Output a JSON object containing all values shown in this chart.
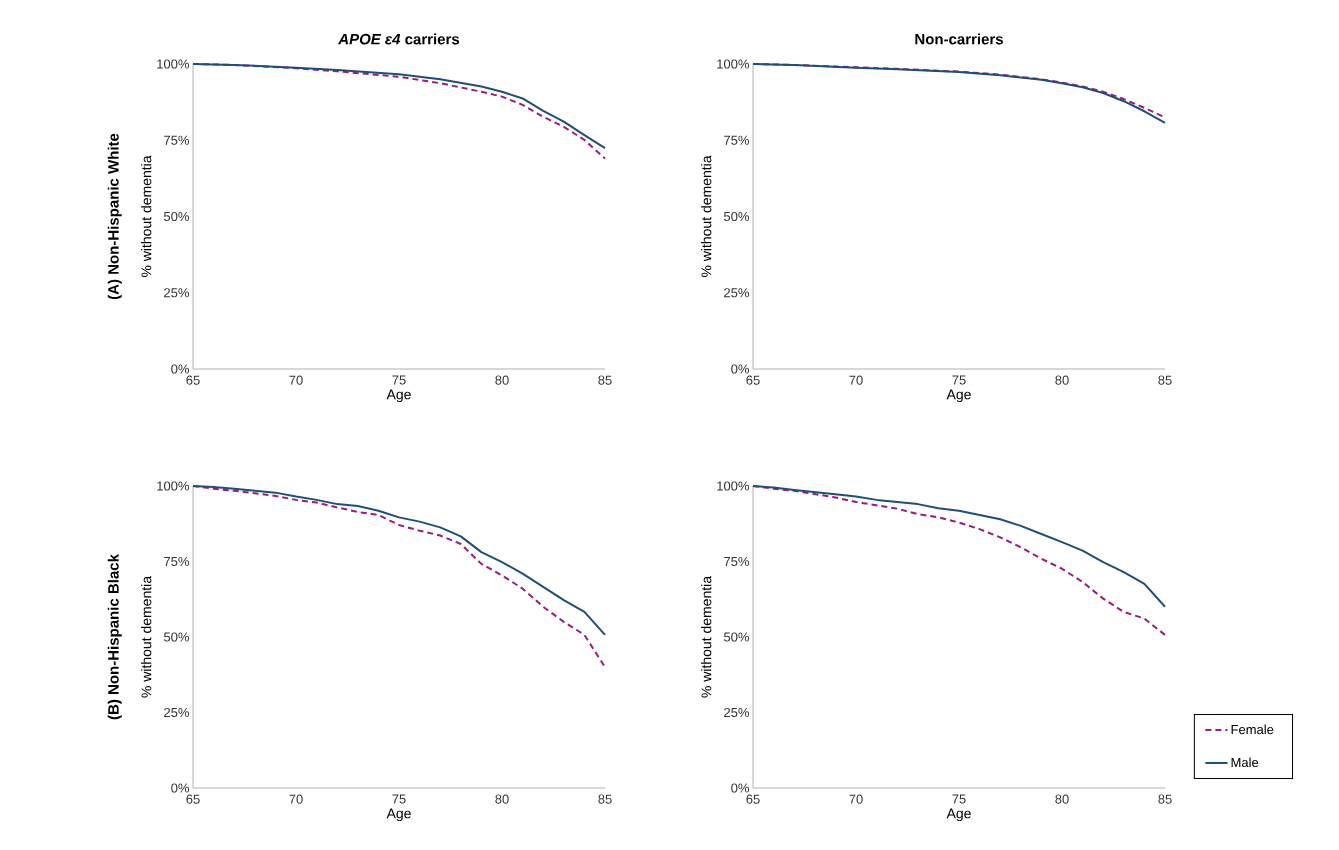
{
  "chart_data": [
    {
      "type": "line",
      "title": "*APOE ε4* carriers",
      "annotations": [
        "(A) Non-Hispanic White"
      ],
      "xlabel": "Age",
      "ylabel": "% without dementia",
      "x": [
        65,
        67,
        70,
        72,
        75,
        77,
        79,
        80,
        81,
        82,
        83,
        84,
        85
      ],
      "series": [
        {
          "color": "#9b1b80",
          "line_style": "dashed",
          "values": [
            100,
            99.7,
            98.6,
            97.6,
            95.8,
            93.7,
            90.9,
            89.3,
            86.6,
            82.7,
            79.4,
            75.1,
            69
          ]
        },
        {
          "color": "#1f4e79",
          "line_style": "solid",
          "values": [
            100,
            99.7,
            98.8,
            98,
            96.6,
            95,
            92.6,
            90.9,
            88.7,
            84.6,
            81.1,
            76.7,
            72.4
          ]
        }
      ],
      "xlim": [
        65,
        85
      ],
      "ylim": [
        0,
        100
      ],
      "xticks": [
        65,
        70,
        75,
        80,
        85
      ],
      "yticks": [
        {
          "value": 0,
          "label": "0%"
        },
        {
          "value": 25,
          "label": "25%"
        },
        {
          "value": 50,
          "label": "50%"
        },
        {
          "value": 75,
          "label": "75%"
        },
        {
          "value": 100,
          "label": "100%"
        }
      ],
      "grid": false
    },
    {
      "type": "line",
      "title": "Non-carriers",
      "xlabel": "Age",
      "ylabel": "% without dementia",
      "x": [
        65,
        67,
        70,
        72,
        75,
        77,
        79,
        80,
        81,
        82,
        83,
        84,
        85
      ],
      "series": [
        {
          "color": "#9b1b80",
          "line_style": "dashed",
          "values": [
            100,
            99.7,
            98.9,
            98.4,
            97.5,
            96.5,
            95,
            93.9,
            92.6,
            90.9,
            88.5,
            85.6,
            82.5
          ]
        },
        {
          "color": "#1f4e79",
          "line_style": "solid",
          "values": [
            100,
            99.7,
            98.8,
            98.3,
            97.4,
            96.3,
            94.8,
            93.7,
            92.4,
            90.5,
            87.8,
            84.5,
            80.7
          ]
        }
      ],
      "xlim": [
        65,
        85
      ],
      "ylim": [
        0,
        100
      ],
      "xticks": [
        65,
        70,
        75,
        80,
        85
      ],
      "yticks": [
        {
          "value": 0,
          "label": "0%"
        },
        {
          "value": 25,
          "label": "25%"
        },
        {
          "value": 50,
          "label": "50%"
        },
        {
          "value": 75,
          "label": "75%"
        },
        {
          "value": 100,
          "label": "100%"
        }
      ],
      "grid": false
    },
    {
      "type": "line",
      "annotations": [
        "(B) Non-Hispanic Black"
      ],
      "xlabel": "Age",
      "ylabel": "% without dementia",
      "x": [
        65,
        66,
        67,
        68,
        69,
        70,
        71,
        72,
        73,
        74,
        75,
        76,
        77,
        78,
        79,
        80,
        81,
        82,
        83,
        84,
        85
      ],
      "series": [
        {
          "color": "#9b1b80",
          "line_style": "dashed",
          "values": [
            100,
            99.1,
            98.4,
            97.6,
            96.7,
            95.4,
            94.5,
            92.9,
            91.4,
            90.4,
            87.1,
            85.2,
            83.6,
            80.8,
            74.2,
            70.4,
            66,
            60,
            55,
            50.7,
            40
          ]
        },
        {
          "color": "#1f4e79",
          "line_style": "solid",
          "values": [
            100,
            99.7,
            99.1,
            98.4,
            97.8,
            96.5,
            95.4,
            94,
            93.4,
            91.8,
            89.6,
            88.2,
            86.3,
            83.3,
            78.1,
            74.8,
            71,
            66.6,
            62.2,
            58.3,
            50.7
          ]
        }
      ],
      "xlim": [
        65,
        85
      ],
      "ylim": [
        0,
        100
      ],
      "xticks": [
        65,
        70,
        75,
        80,
        85
      ],
      "yticks": [
        {
          "value": 0,
          "label": "0%"
        },
        {
          "value": 25,
          "label": "25%"
        },
        {
          "value": 50,
          "label": "50%"
        },
        {
          "value": 75,
          "label": "75%"
        },
        {
          "value": 100,
          "label": "100%"
        }
      ],
      "grid": false
    },
    {
      "type": "line",
      "xlabel": "Age",
      "ylabel": "% without dementia",
      "x": [
        65,
        66,
        67,
        68,
        69,
        70,
        71,
        72,
        73,
        74,
        75,
        76,
        77,
        78,
        79,
        80,
        81,
        82,
        83,
        84,
        85
      ],
      "series": [
        {
          "name": "Female",
          "color": "#9b1b80",
          "line_style": "dashed",
          "values": [
            100,
            99.1,
            98.4,
            97.3,
            96.2,
            94.7,
            93.6,
            92.5,
            90.7,
            89.6,
            87.9,
            85.7,
            83,
            79.7,
            75.9,
            72.6,
            68.2,
            62.7,
            58.3,
            56.1,
            50.7
          ]
        },
        {
          "name": "Male",
          "color": "#1f4e79",
          "line_style": "solid",
          "values": [
            100,
            99.5,
            98.7,
            98,
            97.3,
            96.5,
            95.4,
            94.7,
            94,
            92.6,
            91.8,
            90.4,
            89,
            86.8,
            84.1,
            81.4,
            78.6,
            74.8,
            71.5,
            67.6,
            60
          ]
        }
      ],
      "xlim": [
        65,
        85
      ],
      "ylim": [
        0,
        100
      ],
      "xticks": [
        65,
        70,
        75,
        80,
        85
      ],
      "yticks": [
        {
          "value": 0,
          "label": "0%"
        },
        {
          "value": 25,
          "label": "25%"
        },
        {
          "value": 50,
          "label": "50%"
        },
        {
          "value": 75,
          "label": "75%"
        },
        {
          "value": 100,
          "label": "100%"
        }
      ],
      "grid": false,
      "legend": "bottom right"
    }
  ]
}
